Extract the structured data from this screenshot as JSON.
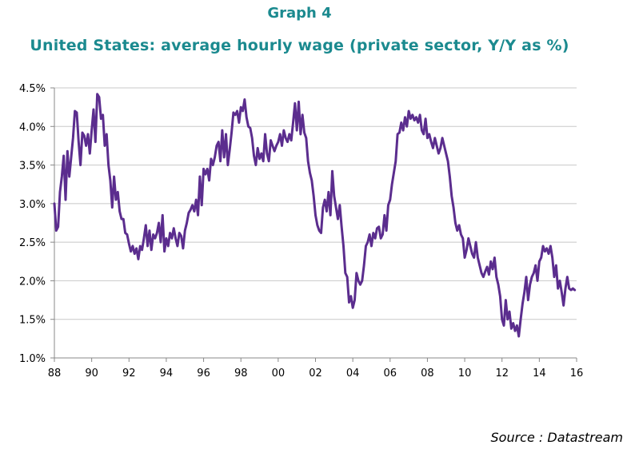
{
  "header": {
    "graph_number": "Graph 4",
    "title": "United States: average hourly wage (private sector, Y/Y as %)"
  },
  "footer": {
    "source": "Source : Datastream"
  },
  "colors": {
    "line": "#5b2d8e",
    "title": "#1b8a8f",
    "grid": "#c8c8c8",
    "axis": "#888888"
  },
  "chart_data": {
    "type": "line",
    "title": "United States: average hourly wage (private sector, Y/Y as %)",
    "xlabel": "",
    "ylabel": "",
    "xlim": [
      1988,
      2016
    ],
    "ylim": [
      1.0,
      4.5
    ],
    "x_ticks": [
      "88",
      "90",
      "92",
      "94",
      "96",
      "98",
      "00",
      "02",
      "04",
      "06",
      "08",
      "10",
      "12",
      "14",
      "16"
    ],
    "x_tick_values": [
      1988,
      1990,
      1992,
      1994,
      1996,
      1998,
      2000,
      2002,
      2004,
      2006,
      2008,
      2010,
      2012,
      2014,
      2016
    ],
    "y_ticks": [
      "1.0%",
      "1.5%",
      "2.0%",
      "2.5%",
      "3.0%",
      "3.5%",
      "4.0%",
      "4.5%"
    ],
    "y_tick_values": [
      1.0,
      1.5,
      2.0,
      2.5,
      3.0,
      3.5,
      4.0,
      4.5
    ],
    "grid": "horizontal",
    "legend": "none",
    "series": [
      {
        "values": [
          [
            1988.0,
            3.0
          ],
          [
            1988.1,
            2.65
          ],
          [
            1988.2,
            2.7
          ],
          [
            1988.3,
            3.15
          ],
          [
            1988.4,
            3.35
          ],
          [
            1988.5,
            3.62
          ],
          [
            1988.6,
            3.05
          ],
          [
            1988.7,
            3.68
          ],
          [
            1988.8,
            3.35
          ],
          [
            1988.9,
            3.6
          ],
          [
            1989.0,
            3.85
          ],
          [
            1989.1,
            4.2
          ],
          [
            1989.2,
            4.18
          ],
          [
            1989.3,
            3.8
          ],
          [
            1989.4,
            3.5
          ],
          [
            1989.5,
            3.92
          ],
          [
            1989.6,
            3.88
          ],
          [
            1989.7,
            3.75
          ],
          [
            1989.8,
            3.9
          ],
          [
            1989.9,
            3.65
          ],
          [
            1990.0,
            3.95
          ],
          [
            1990.1,
            4.22
          ],
          [
            1990.2,
            3.8
          ],
          [
            1990.3,
            4.42
          ],
          [
            1990.4,
            4.38
          ],
          [
            1990.5,
            4.1
          ],
          [
            1990.6,
            4.15
          ],
          [
            1990.7,
            3.75
          ],
          [
            1990.8,
            3.9
          ],
          [
            1990.9,
            3.5
          ],
          [
            1991.0,
            3.3
          ],
          [
            1991.1,
            2.95
          ],
          [
            1991.2,
            3.35
          ],
          [
            1991.3,
            3.05
          ],
          [
            1991.4,
            3.15
          ],
          [
            1991.5,
            2.9
          ],
          [
            1991.6,
            2.8
          ],
          [
            1991.7,
            2.8
          ],
          [
            1991.8,
            2.62
          ],
          [
            1991.9,
            2.6
          ],
          [
            1992.0,
            2.48
          ],
          [
            1992.1,
            2.38
          ],
          [
            1992.2,
            2.45
          ],
          [
            1992.3,
            2.35
          ],
          [
            1992.4,
            2.42
          ],
          [
            1992.5,
            2.28
          ],
          [
            1992.6,
            2.45
          ],
          [
            1992.7,
            2.4
          ],
          [
            1992.8,
            2.55
          ],
          [
            1992.9,
            2.72
          ],
          [
            1993.0,
            2.45
          ],
          [
            1993.1,
            2.65
          ],
          [
            1993.2,
            2.4
          ],
          [
            1993.3,
            2.6
          ],
          [
            1993.4,
            2.55
          ],
          [
            1993.5,
            2.62
          ],
          [
            1993.6,
            2.75
          ],
          [
            1993.7,
            2.5
          ],
          [
            1993.8,
            2.85
          ],
          [
            1993.9,
            2.38
          ],
          [
            1994.0,
            2.55
          ],
          [
            1994.1,
            2.45
          ],
          [
            1994.2,
            2.62
          ],
          [
            1994.3,
            2.55
          ],
          [
            1994.4,
            2.68
          ],
          [
            1994.5,
            2.55
          ],
          [
            1994.6,
            2.45
          ],
          [
            1994.7,
            2.62
          ],
          [
            1994.8,
            2.58
          ],
          [
            1994.9,
            2.42
          ],
          [
            1995.0,
            2.65
          ],
          [
            1995.1,
            2.75
          ],
          [
            1995.2,
            2.88
          ],
          [
            1995.3,
            2.92
          ],
          [
            1995.4,
            2.98
          ],
          [
            1995.5,
            2.9
          ],
          [
            1995.6,
            3.05
          ],
          [
            1995.7,
            2.85
          ],
          [
            1995.8,
            3.35
          ],
          [
            1995.9,
            2.98
          ],
          [
            1996.0,
            3.45
          ],
          [
            1996.1,
            3.38
          ],
          [
            1996.2,
            3.45
          ],
          [
            1996.3,
            3.3
          ],
          [
            1996.4,
            3.58
          ],
          [
            1996.5,
            3.5
          ],
          [
            1996.6,
            3.6
          ],
          [
            1996.7,
            3.75
          ],
          [
            1996.8,
            3.8
          ],
          [
            1996.9,
            3.55
          ],
          [
            1997.0,
            3.95
          ],
          [
            1997.1,
            3.6
          ],
          [
            1997.2,
            3.9
          ],
          [
            1997.3,
            3.5
          ],
          [
            1997.4,
            3.7
          ],
          [
            1997.5,
            3.92
          ],
          [
            1997.6,
            4.18
          ],
          [
            1997.7,
            4.15
          ],
          [
            1997.8,
            4.2
          ],
          [
            1997.9,
            4.05
          ],
          [
            1998.0,
            4.25
          ],
          [
            1998.1,
            4.2
          ],
          [
            1998.2,
            4.35
          ],
          [
            1998.3,
            4.12
          ],
          [
            1998.4,
            4.0
          ],
          [
            1998.5,
            3.98
          ],
          [
            1998.6,
            3.85
          ],
          [
            1998.7,
            3.62
          ],
          [
            1998.8,
            3.5
          ],
          [
            1998.9,
            3.72
          ],
          [
            1999.0,
            3.58
          ],
          [
            1999.1,
            3.65
          ],
          [
            1999.2,
            3.55
          ],
          [
            1999.3,
            3.9
          ],
          [
            1999.4,
            3.65
          ],
          [
            1999.5,
            3.55
          ],
          [
            1999.6,
            3.82
          ],
          [
            1999.7,
            3.75
          ],
          [
            1999.8,
            3.68
          ],
          [
            1999.9,
            3.75
          ],
          [
            2000.0,
            3.8
          ],
          [
            2000.1,
            3.9
          ],
          [
            2000.2,
            3.75
          ],
          [
            2000.3,
            3.95
          ],
          [
            2000.4,
            3.85
          ],
          [
            2000.5,
            3.8
          ],
          [
            2000.6,
            3.9
          ],
          [
            2000.7,
            3.82
          ],
          [
            2000.8,
            4.05
          ],
          [
            2000.9,
            4.3
          ],
          [
            2001.0,
            3.95
          ],
          [
            2001.1,
            4.32
          ],
          [
            2001.2,
            3.9
          ],
          [
            2001.3,
            4.15
          ],
          [
            2001.4,
            3.92
          ],
          [
            2001.5,
            3.85
          ],
          [
            2001.6,
            3.55
          ],
          [
            2001.7,
            3.4
          ],
          [
            2001.8,
            3.3
          ],
          [
            2001.9,
            3.1
          ],
          [
            2002.0,
            2.85
          ],
          [
            2002.1,
            2.72
          ],
          [
            2002.2,
            2.65
          ],
          [
            2002.3,
            2.62
          ],
          [
            2002.4,
            2.95
          ],
          [
            2002.5,
            3.05
          ],
          [
            2002.6,
            2.9
          ],
          [
            2002.7,
            3.15
          ],
          [
            2002.8,
            2.85
          ],
          [
            2002.9,
            3.42
          ],
          [
            2003.0,
            3.1
          ],
          [
            2003.1,
            2.95
          ],
          [
            2003.2,
            2.8
          ],
          [
            2003.3,
            2.98
          ],
          [
            2003.4,
            2.7
          ],
          [
            2003.5,
            2.45
          ],
          [
            2003.6,
            2.1
          ],
          [
            2003.7,
            2.05
          ],
          [
            2003.8,
            1.72
          ],
          [
            2003.9,
            1.8
          ],
          [
            2004.0,
            1.65
          ],
          [
            2004.1,
            1.75
          ],
          [
            2004.2,
            2.1
          ],
          [
            2004.3,
            2.0
          ],
          [
            2004.4,
            1.95
          ],
          [
            2004.5,
            2.0
          ],
          [
            2004.6,
            2.2
          ],
          [
            2004.7,
            2.45
          ],
          [
            2004.8,
            2.5
          ],
          [
            2004.9,
            2.6
          ],
          [
            2005.0,
            2.45
          ],
          [
            2005.1,
            2.62
          ],
          [
            2005.2,
            2.55
          ],
          [
            2005.3,
            2.68
          ],
          [
            2005.4,
            2.7
          ],
          [
            2005.5,
            2.55
          ],
          [
            2005.6,
            2.6
          ],
          [
            2005.7,
            2.85
          ],
          [
            2005.8,
            2.65
          ],
          [
            2005.9,
            2.98
          ],
          [
            2006.0,
            3.05
          ],
          [
            2006.1,
            3.25
          ],
          [
            2006.2,
            3.4
          ],
          [
            2006.3,
            3.55
          ],
          [
            2006.4,
            3.9
          ],
          [
            2006.5,
            3.92
          ],
          [
            2006.6,
            4.05
          ],
          [
            2006.7,
            3.95
          ],
          [
            2006.8,
            4.12
          ],
          [
            2006.9,
            4.0
          ],
          [
            2007.0,
            4.2
          ],
          [
            2007.1,
            4.1
          ],
          [
            2007.2,
            4.15
          ],
          [
            2007.3,
            4.08
          ],
          [
            2007.4,
            4.12
          ],
          [
            2007.5,
            4.05
          ],
          [
            2007.6,
            4.15
          ],
          [
            2007.7,
            3.95
          ],
          [
            2007.8,
            3.9
          ],
          [
            2007.9,
            4.1
          ],
          [
            2008.0,
            3.85
          ],
          [
            2008.1,
            3.9
          ],
          [
            2008.2,
            3.8
          ],
          [
            2008.3,
            3.72
          ],
          [
            2008.4,
            3.85
          ],
          [
            2008.5,
            3.75
          ],
          [
            2008.6,
            3.65
          ],
          [
            2008.7,
            3.72
          ],
          [
            2008.8,
            3.85
          ],
          [
            2008.9,
            3.75
          ],
          [
            2009.0,
            3.65
          ],
          [
            2009.1,
            3.55
          ],
          [
            2009.2,
            3.35
          ],
          [
            2009.3,
            3.1
          ],
          [
            2009.4,
            2.95
          ],
          [
            2009.5,
            2.75
          ],
          [
            2009.6,
            2.65
          ],
          [
            2009.7,
            2.72
          ],
          [
            2009.8,
            2.6
          ],
          [
            2009.9,
            2.55
          ],
          [
            2010.0,
            2.3
          ],
          [
            2010.1,
            2.4
          ],
          [
            2010.2,
            2.55
          ],
          [
            2010.3,
            2.45
          ],
          [
            2010.4,
            2.35
          ],
          [
            2010.5,
            2.3
          ],
          [
            2010.6,
            2.5
          ],
          [
            2010.7,
            2.3
          ],
          [
            2010.8,
            2.2
          ],
          [
            2010.9,
            2.1
          ],
          [
            2011.0,
            2.05
          ],
          [
            2011.1,
            2.12
          ],
          [
            2011.2,
            2.18
          ],
          [
            2011.3,
            2.08
          ],
          [
            2011.4,
            2.25
          ],
          [
            2011.5,
            2.15
          ],
          [
            2011.6,
            2.3
          ],
          [
            2011.7,
            2.05
          ],
          [
            2011.8,
            1.95
          ],
          [
            2011.9,
            1.8
          ],
          [
            2012.0,
            1.5
          ],
          [
            2012.1,
            1.42
          ],
          [
            2012.2,
            1.75
          ],
          [
            2012.3,
            1.5
          ],
          [
            2012.4,
            1.6
          ],
          [
            2012.5,
            1.38
          ],
          [
            2012.6,
            1.45
          ],
          [
            2012.7,
            1.35
          ],
          [
            2012.8,
            1.42
          ],
          [
            2012.9,
            1.28
          ],
          [
            2013.0,
            1.5
          ],
          [
            2013.1,
            1.7
          ],
          [
            2013.2,
            1.85
          ],
          [
            2013.3,
            2.05
          ],
          [
            2013.4,
            1.75
          ],
          [
            2013.5,
            1.95
          ],
          [
            2013.6,
            2.05
          ],
          [
            2013.7,
            2.1
          ],
          [
            2013.8,
            2.2
          ],
          [
            2013.9,
            2.0
          ],
          [
            2014.0,
            2.25
          ],
          [
            2014.1,
            2.3
          ],
          [
            2014.2,
            2.45
          ],
          [
            2014.3,
            2.38
          ],
          [
            2014.4,
            2.42
          ],
          [
            2014.5,
            2.35
          ],
          [
            2014.6,
            2.45
          ],
          [
            2014.7,
            2.3
          ],
          [
            2014.8,
            2.05
          ],
          [
            2014.9,
            2.2
          ],
          [
            2015.0,
            1.9
          ],
          [
            2015.1,
            2.0
          ],
          [
            2015.2,
            1.85
          ],
          [
            2015.3,
            1.68
          ],
          [
            2015.4,
            1.9
          ],
          [
            2015.5,
            2.05
          ],
          [
            2015.6,
            1.9
          ],
          [
            2015.7,
            1.88
          ],
          [
            2015.8,
            1.9
          ],
          [
            2015.9,
            1.88
          ]
        ]
      }
    ]
  }
}
